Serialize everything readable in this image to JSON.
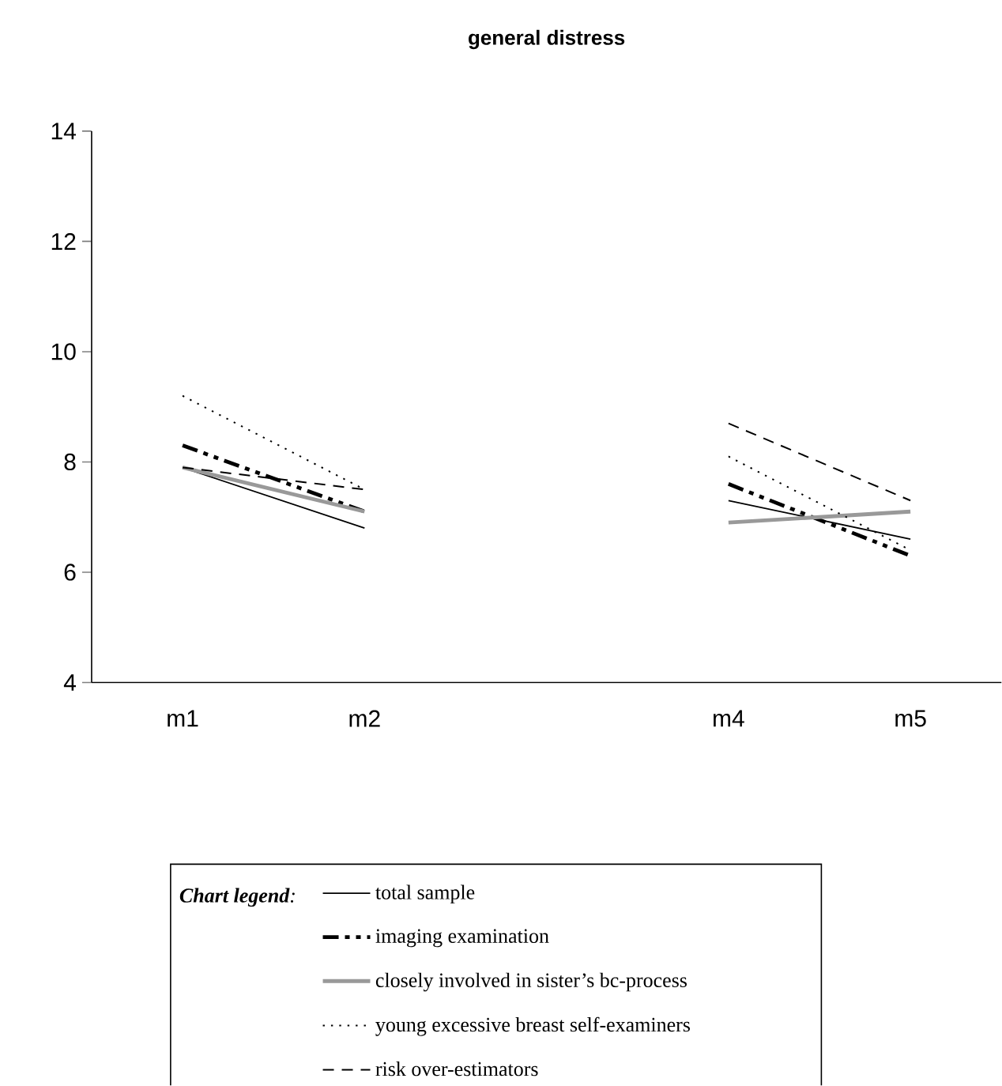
{
  "chart_data": {
    "type": "line",
    "title": "general distress",
    "categories": [
      "m1",
      "m2",
      null,
      "m4",
      "m5"
    ],
    "ylim": [
      4,
      14
    ],
    "yticks": [
      4,
      6,
      8,
      10,
      12,
      14
    ],
    "legend": "bottom",
    "legend_title": "**Chart legend**:",
    "series": [
      {
        "name": "total sample",
        "color": "#000000",
        "line_style": "solid",
        "values": [
          7.9,
          6.8,
          null,
          7.3,
          6.6
        ]
      },
      {
        "name": "imaging examination",
        "color": "#000000",
        "line_style": "dashdotdotted",
        "values": [
          8.3,
          7.1,
          null,
          7.6,
          6.3
        ]
      },
      {
        "name": "closely involved in sister’s bc-process",
        "color": "#999999",
        "line_style": "solid",
        "values": [
          7.9,
          7.1,
          null,
          6.9,
          7.1
        ]
      },
      {
        "name": "young excessive breast self-examiners",
        "color": "#000000",
        "line_style": "dotted",
        "values": [
          9.2,
          7.5,
          null,
          8.1,
          6.4
        ]
      },
      {
        "name": "risk over-estimators",
        "color": "#000000",
        "line_style": "dashed",
        "values": [
          7.9,
          7.5,
          null,
          8.7,
          7.3
        ]
      }
    ]
  }
}
